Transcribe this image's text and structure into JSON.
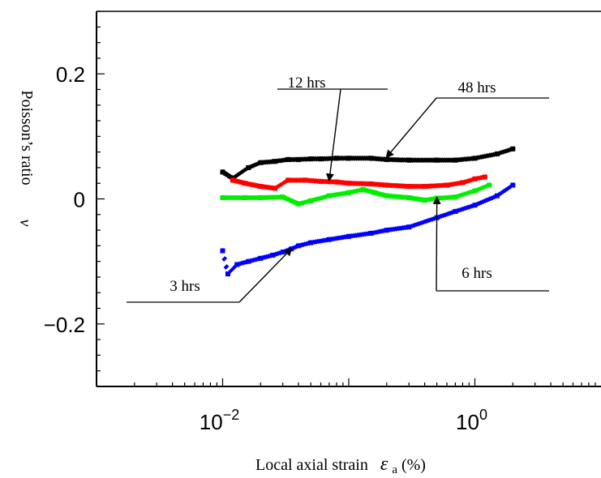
{
  "chart_data": {
    "type": "scatter",
    "xlabel": "Local axial strain",
    "xlabel_symbol": "ε",
    "xlabel_subscript": "a",
    "xlabel_unit": "(%)",
    "ylabel": "Poisson’s ratio",
    "ylabel_symbol": "ν",
    "xscale": "log",
    "xlim": [
      0.001,
      10
    ],
    "ylim": [
      -0.3,
      0.3
    ],
    "grid": false,
    "y_ticks": [
      {
        "value": 0.2,
        "label": "0.2"
      },
      {
        "value": 0,
        "label": "0"
      },
      {
        "value": -0.2,
        "label": "−0.2"
      }
    ],
    "x_ticks": [
      {
        "value": 0.01,
        "base": "10",
        "exp": "−2"
      },
      {
        "value": 1,
        "base": "10",
        "exp": "0"
      }
    ],
    "series": [
      {
        "name": "48 hrs",
        "color": "#000000",
        "points": [
          [
            0.01,
            0.043
          ],
          [
            0.012,
            0.033
          ],
          [
            0.016,
            0.05
          ],
          [
            0.02,
            0.058
          ],
          [
            0.026,
            0.06
          ],
          [
            0.033,
            0.063
          ],
          [
            0.04,
            0.063
          ],
          [
            0.05,
            0.064
          ],
          [
            0.06,
            0.064
          ],
          [
            0.08,
            0.065
          ],
          [
            0.1,
            0.065
          ],
          [
            0.15,
            0.065
          ],
          [
            0.2,
            0.063
          ],
          [
            0.3,
            0.062
          ],
          [
            0.5,
            0.062
          ],
          [
            0.7,
            0.062
          ],
          [
            1.0,
            0.065
          ],
          [
            1.5,
            0.072
          ],
          [
            2.0,
            0.08
          ]
        ]
      },
      {
        "name": "12 hrs",
        "color": "#ff0000",
        "points": [
          [
            0.012,
            0.03
          ],
          [
            0.015,
            0.025
          ],
          [
            0.02,
            0.02
          ],
          [
            0.026,
            0.017
          ],
          [
            0.033,
            0.03
          ],
          [
            0.045,
            0.03
          ],
          [
            0.06,
            0.028
          ],
          [
            0.08,
            0.027
          ],
          [
            0.1,
            0.025
          ],
          [
            0.15,
            0.024
          ],
          [
            0.2,
            0.022
          ],
          [
            0.3,
            0.02
          ],
          [
            0.4,
            0.02
          ],
          [
            0.6,
            0.022
          ],
          [
            0.8,
            0.026
          ],
          [
            1.0,
            0.032
          ],
          [
            1.2,
            0.035
          ]
        ]
      },
      {
        "name": "6 hrs",
        "color": "#00ee00",
        "points": [
          [
            0.01,
            0.002
          ],
          [
            0.015,
            0.002
          ],
          [
            0.02,
            0.002
          ],
          [
            0.03,
            0.003
          ],
          [
            0.04,
            -0.008
          ],
          [
            0.05,
            -0.003
          ],
          [
            0.07,
            0.005
          ],
          [
            0.1,
            0.01
          ],
          [
            0.13,
            0.015
          ],
          [
            0.16,
            0.01
          ],
          [
            0.2,
            0.005
          ],
          [
            0.3,
            0.002
          ],
          [
            0.4,
            -0.002
          ],
          [
            0.5,
            0.001
          ],
          [
            0.7,
            0.003
          ],
          [
            1.0,
            0.013
          ],
          [
            1.3,
            0.022
          ]
        ]
      },
      {
        "name": "3 hrs",
        "color": "#0000ff",
        "points": [
          [
            0.01,
            -0.083
          ],
          [
            0.011,
            -0.12
          ],
          [
            0.013,
            -0.105
          ],
          [
            0.016,
            -0.1
          ],
          [
            0.02,
            -0.095
          ],
          [
            0.025,
            -0.09
          ],
          [
            0.03,
            -0.085
          ],
          [
            0.035,
            -0.08
          ],
          [
            0.04,
            -0.075
          ],
          [
            0.05,
            -0.07
          ],
          [
            0.07,
            -0.065
          ],
          [
            0.1,
            -0.06
          ],
          [
            0.15,
            -0.055
          ],
          [
            0.2,
            -0.05
          ],
          [
            0.3,
            -0.045
          ],
          [
            0.5,
            -0.03
          ],
          [
            0.7,
            -0.02
          ],
          [
            1.0,
            -0.01
          ],
          [
            1.5,
            0.005
          ],
          [
            2.0,
            0.022
          ]
        ]
      }
    ],
    "annotations": [
      {
        "text": "12 hrs",
        "series": "12 hrs",
        "arrow_to": [
          0.07,
          0.03
        ]
      },
      {
        "text": "48 hrs",
        "series": "48 hrs",
        "arrow_to": [
          0.2,
          0.067
        ]
      },
      {
        "text": "3 hrs",
        "series": "3 hrs",
        "arrow_to": [
          0.035,
          -0.08
        ]
      },
      {
        "text": "6 hrs",
        "series": "6 hrs",
        "arrow_to": [
          0.5,
          0.002
        ]
      }
    ]
  }
}
